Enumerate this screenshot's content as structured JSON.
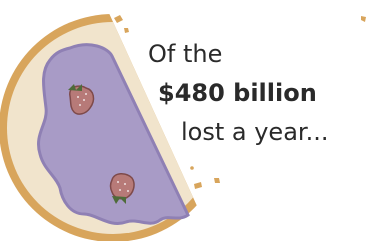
{
  "text": {
    "line1": "Of the",
    "line2": "$480 billion",
    "line3": "lost a year..."
  }
}
